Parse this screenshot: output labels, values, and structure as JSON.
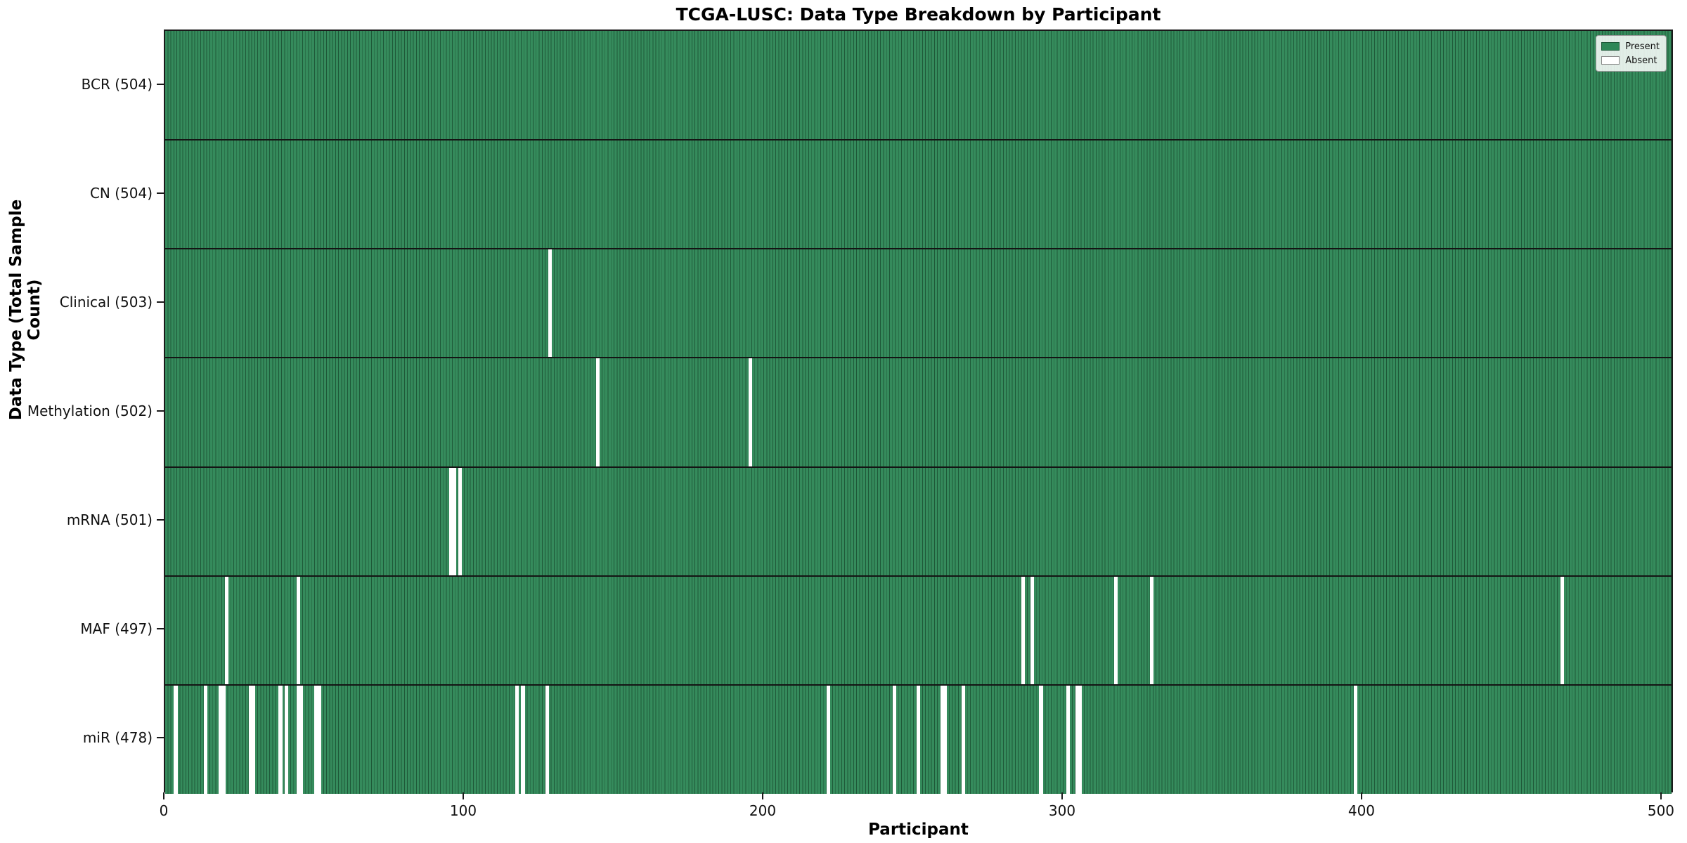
{
  "title": "TCGA-LUSC: Data Type Breakdown by Participant",
  "legend": {
    "present_label": "Present",
    "absent_label": "Absent"
  },
  "colors": {
    "present_fill": "#358b5c",
    "present_edge": "#1e5838",
    "absent": "#ffffff",
    "separator": "#141414",
    "text": "#111111"
  },
  "chart_data": {
    "type": "heatmap",
    "title": "TCGA-LUSC: Data Type Breakdown by Participant",
    "xlabel": "Participant",
    "ylabel": "Data Type (Total Sample Count)",
    "x_ticks": [
      0,
      100,
      200,
      300,
      400,
      500
    ],
    "x_range": [
      0,
      504
    ],
    "n_participants": 504,
    "grid": false,
    "legend_position": "upper right",
    "legend_entries": [
      "Present",
      "Absent"
    ],
    "rows": [
      {
        "label": "BCR (504)",
        "data_type": "BCR",
        "present_count": 504,
        "absent_participants": []
      },
      {
        "label": "CN (504)",
        "data_type": "CN",
        "present_count": 504,
        "absent_participants": []
      },
      {
        "label": "Clinical (503)",
        "data_type": "Clinical",
        "present_count": 503,
        "absent_participants": [
          128
        ]
      },
      {
        "label": "Methylation (502)",
        "data_type": "Methylation",
        "present_count": 502,
        "absent_participants": [
          144,
          195
        ]
      },
      {
        "label": "mRNA (501)",
        "data_type": "mRNA",
        "present_count": 501,
        "absent_participants": [
          95,
          96,
          98
        ]
      },
      {
        "label": "MAF (497)",
        "data_type": "MAF",
        "present_count": 497,
        "absent_participants": [
          20,
          44,
          286,
          289,
          317,
          329,
          466
        ]
      },
      {
        "label": "miR (478)",
        "data_type": "miR",
        "present_count": 478,
        "absent_participants": [
          3,
          13,
          18,
          19,
          28,
          29,
          38,
          40,
          44,
          45,
          50,
          51,
          117,
          119,
          127,
          221,
          243,
          251,
          259,
          260,
          266,
          292,
          301,
          304,
          305,
          397
        ]
      }
    ]
  }
}
